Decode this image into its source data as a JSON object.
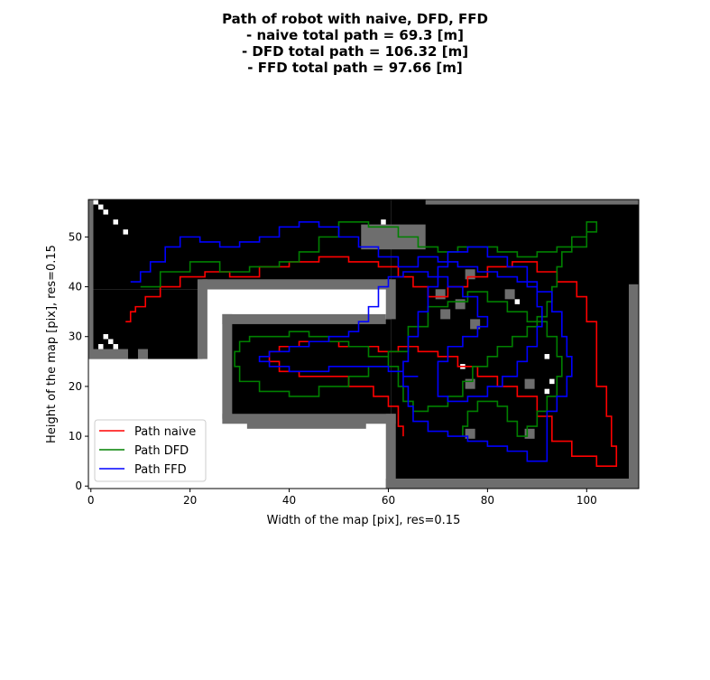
{
  "chart_data": {
    "type": "line",
    "title_lines": [
      "Path of robot with naive, DFD, FFD",
      "- naive total path = 69.3 [m]",
      "- DFD total path = 106.32 [m]",
      "- FFD total path = 97.66 [m]"
    ],
    "xlabel": "Width of the map [pix], res=0.15",
    "ylabel": "Height of the map [pix], res=0.15",
    "xlim": [
      -0.5,
      110.5
    ],
    "ylim": [
      -0.5,
      57.5
    ],
    "xticks": [
      0,
      20,
      40,
      60,
      80,
      100
    ],
    "yticks": [
      0,
      10,
      20,
      30,
      40,
      50
    ],
    "legend_position": "lower-left",
    "background_map": {
      "free_color": "#ffffff",
      "occupied_color": "#000000",
      "unknown_color": "#6e6e6e"
    },
    "series": [
      {
        "name": "Path naive",
        "color": "#ff0000",
        "points": [
          [
            7,
            33
          ],
          [
            8,
            35
          ],
          [
            9,
            36
          ],
          [
            11,
            38
          ],
          [
            14,
            40
          ],
          [
            18,
            42
          ],
          [
            23,
            43
          ],
          [
            28,
            42
          ],
          [
            34,
            44
          ],
          [
            40,
            45
          ],
          [
            46,
            46
          ],
          [
            52,
            45
          ],
          [
            58,
            44
          ],
          [
            62,
            42
          ],
          [
            65,
            40
          ],
          [
            68,
            38
          ],
          [
            72,
            40
          ],
          [
            76,
            42
          ],
          [
            80,
            44
          ],
          [
            85,
            45
          ],
          [
            90,
            43
          ],
          [
            94,
            41
          ],
          [
            98,
            38
          ],
          [
            100,
            33
          ],
          [
            102,
            27
          ],
          [
            102,
            20
          ],
          [
            104,
            14
          ],
          [
            105,
            8
          ],
          [
            106,
            4
          ],
          [
            102,
            6
          ],
          [
            97,
            9
          ],
          [
            93,
            14
          ],
          [
            90,
            18
          ],
          [
            86,
            20
          ],
          [
            82,
            22
          ],
          [
            78,
            24
          ],
          [
            74,
            26
          ],
          [
            70,
            27
          ],
          [
            66,
            28
          ],
          [
            62,
            27
          ],
          [
            58,
            28
          ],
          [
            54,
            28
          ],
          [
            50,
            29
          ],
          [
            46,
            29
          ],
          [
            42,
            28
          ],
          [
            38,
            27
          ],
          [
            36,
            25
          ],
          [
            38,
            23
          ],
          [
            42,
            22
          ],
          [
            48,
            22
          ],
          [
            52,
            20
          ],
          [
            57,
            18
          ],
          [
            60,
            16
          ],
          [
            62,
            12
          ],
          [
            63,
            10
          ]
        ]
      },
      {
        "name": "Path DFD",
        "color": "#008000",
        "points": [
          [
            10,
            40
          ],
          [
            14,
            43
          ],
          [
            20,
            45
          ],
          [
            26,
            43
          ],
          [
            32,
            44
          ],
          [
            38,
            45
          ],
          [
            42,
            47
          ],
          [
            46,
            50
          ],
          [
            50,
            53
          ],
          [
            56,
            52
          ],
          [
            62,
            50
          ],
          [
            66,
            48
          ],
          [
            70,
            47
          ],
          [
            74,
            48
          ],
          [
            78,
            48
          ],
          [
            82,
            47
          ],
          [
            86,
            46
          ],
          [
            90,
            47
          ],
          [
            94,
            48
          ],
          [
            98,
            48
          ],
          [
            100,
            51
          ],
          [
            102,
            53
          ],
          [
            100,
            50
          ],
          [
            97,
            47
          ],
          [
            95,
            44
          ],
          [
            94,
            40
          ],
          [
            93,
            37
          ],
          [
            92,
            34
          ],
          [
            90,
            32
          ],
          [
            88,
            30
          ],
          [
            85,
            28
          ],
          [
            82,
            26
          ],
          [
            80,
            24
          ],
          [
            77,
            21
          ],
          [
            75,
            18
          ],
          [
            72,
            16
          ],
          [
            68,
            15
          ],
          [
            65,
            17
          ],
          [
            63,
            20
          ],
          [
            62,
            24
          ],
          [
            60,
            26
          ],
          [
            56,
            28
          ],
          [
            52,
            29
          ],
          [
            48,
            30
          ],
          [
            44,
            31
          ],
          [
            40,
            30
          ],
          [
            36,
            30
          ],
          [
            32,
            29
          ],
          [
            30,
            27
          ],
          [
            29,
            24
          ],
          [
            30,
            21
          ],
          [
            34,
            19
          ],
          [
            40,
            18
          ],
          [
            46,
            20
          ],
          [
            52,
            22
          ],
          [
            56,
            24
          ],
          [
            60,
            27
          ],
          [
            64,
            32
          ],
          [
            68,
            36
          ],
          [
            72,
            37
          ],
          [
            76,
            39
          ],
          [
            80,
            37
          ],
          [
            84,
            35
          ],
          [
            88,
            33
          ],
          [
            92,
            30
          ],
          [
            94,
            26
          ],
          [
            95,
            22
          ],
          [
            94,
            18
          ],
          [
            92,
            15
          ],
          [
            90,
            12
          ],
          [
            88,
            10
          ],
          [
            86,
            13
          ],
          [
            84,
            16
          ],
          [
            82,
            17
          ],
          [
            78,
            15
          ],
          [
            76,
            12
          ],
          [
            75,
            10
          ]
        ]
      },
      {
        "name": "Path FFD",
        "color": "#0000ff",
        "points": [
          [
            8,
            41
          ],
          [
            10,
            43
          ],
          [
            12,
            45
          ],
          [
            15,
            48
          ],
          [
            18,
            50
          ],
          [
            22,
            49
          ],
          [
            26,
            48
          ],
          [
            30,
            49
          ],
          [
            34,
            50
          ],
          [
            38,
            52
          ],
          [
            42,
            53
          ],
          [
            46,
            52
          ],
          [
            50,
            50
          ],
          [
            54,
            48
          ],
          [
            58,
            46
          ],
          [
            62,
            44
          ],
          [
            66,
            46
          ],
          [
            70,
            45
          ],
          [
            74,
            44
          ],
          [
            78,
            43
          ],
          [
            82,
            42
          ],
          [
            86,
            41
          ],
          [
            90,
            39
          ],
          [
            93,
            35
          ],
          [
            95,
            30
          ],
          [
            96,
            26
          ],
          [
            97,
            22
          ],
          [
            96,
            18
          ],
          [
            94,
            15
          ],
          [
            92,
            10
          ],
          [
            92,
            5
          ],
          [
            88,
            7
          ],
          [
            84,
            8
          ],
          [
            80,
            9
          ],
          [
            76,
            10
          ],
          [
            72,
            11
          ],
          [
            68,
            13
          ],
          [
            65,
            16
          ],
          [
            64,
            20
          ],
          [
            63,
            25
          ],
          [
            64,
            30
          ],
          [
            66,
            35
          ],
          [
            68,
            40
          ],
          [
            70,
            44
          ],
          [
            72,
            47
          ],
          [
            76,
            48
          ],
          [
            80,
            46
          ],
          [
            84,
            44
          ],
          [
            88,
            40
          ],
          [
            90,
            36
          ],
          [
            91,
            32
          ],
          [
            90,
            28
          ],
          [
            88,
            25
          ],
          [
            86,
            22
          ],
          [
            83,
            20
          ],
          [
            80,
            18
          ],
          [
            76,
            17
          ],
          [
            72,
            18
          ],
          [
            70,
            21
          ],
          [
            70,
            25
          ],
          [
            72,
            28
          ],
          [
            75,
            30
          ],
          [
            78,
            32
          ],
          [
            80,
            34
          ],
          [
            78,
            38
          ],
          [
            75,
            40
          ],
          [
            72,
            42
          ],
          [
            68,
            43
          ],
          [
            63,
            42
          ],
          [
            60,
            40
          ],
          [
            58,
            36
          ],
          [
            56,
            33
          ],
          [
            54,
            31
          ],
          [
            52,
            30
          ],
          [
            48,
            29
          ],
          [
            44,
            28
          ],
          [
            40,
            27
          ],
          [
            36,
            26
          ],
          [
            34,
            25
          ],
          [
            36,
            24
          ],
          [
            40,
            23
          ],
          [
            44,
            23
          ],
          [
            48,
            24
          ],
          [
            52,
            24
          ],
          [
            56,
            24
          ],
          [
            60,
            23
          ],
          [
            63,
            22
          ],
          [
            66,
            22
          ]
        ]
      }
    ]
  }
}
